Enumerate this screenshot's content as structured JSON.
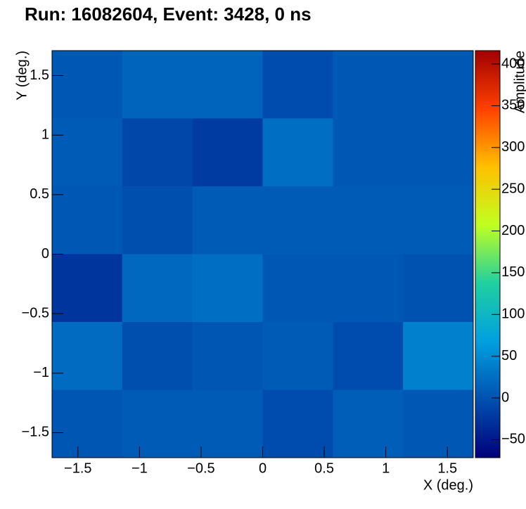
{
  "chart_data": {
    "type": "heatmap",
    "title": "Run: 16082604, Event: 3428, 0 ns",
    "x_label": "X (deg.)",
    "y_label": "Y (deg.)",
    "colorbar_label": "Amplitude",
    "x": [
      -1.425,
      -0.855,
      -0.285,
      0.285,
      0.855,
      1.425
    ],
    "y": [
      1.425,
      0.855,
      0.285,
      -0.285,
      -0.855,
      -1.425
    ],
    "z": [
      [
        5,
        15,
        15,
        -5,
        5,
        5
      ],
      [
        8,
        -10,
        -20,
        25,
        5,
        5
      ],
      [
        5,
        -3,
        8,
        8,
        8,
        8
      ],
      [
        -25,
        20,
        25,
        5,
        5,
        0
      ],
      [
        22,
        -3,
        3,
        8,
        -5,
        40
      ],
      [
        3,
        8,
        8,
        -5,
        10,
        5
      ]
    ],
    "xlim": [
      -1.71,
      1.71
    ],
    "ylim": [
      -1.71,
      1.71
    ],
    "zlim": [
      -71.5,
      416
    ],
    "xticks": [
      {
        "value": -1.5,
        "label": "−1.5"
      },
      {
        "value": -1,
        "label": "−1"
      },
      {
        "value": -0.5,
        "label": "−0.5"
      },
      0,
      0.5,
      1,
      1.5
    ],
    "yticks": [
      {
        "value": -1.5,
        "label": "−1.5"
      },
      {
        "value": -1,
        "label": "−1"
      },
      {
        "value": -0.5,
        "label": "−0.5"
      },
      0,
      0.5,
      1,
      1.5
    ],
    "zticks": [
      {
        "value": -50,
        "label": "−50"
      },
      0,
      50,
      100,
      150,
      200,
      250,
      300,
      350,
      400
    ],
    "colorscale": [
      "#00007a",
      "#0050b0",
      "#00a0e0",
      "#20d0a0",
      "#c0ff20",
      "#ffc000",
      "#ff4000",
      "#a00000"
    ]
  }
}
